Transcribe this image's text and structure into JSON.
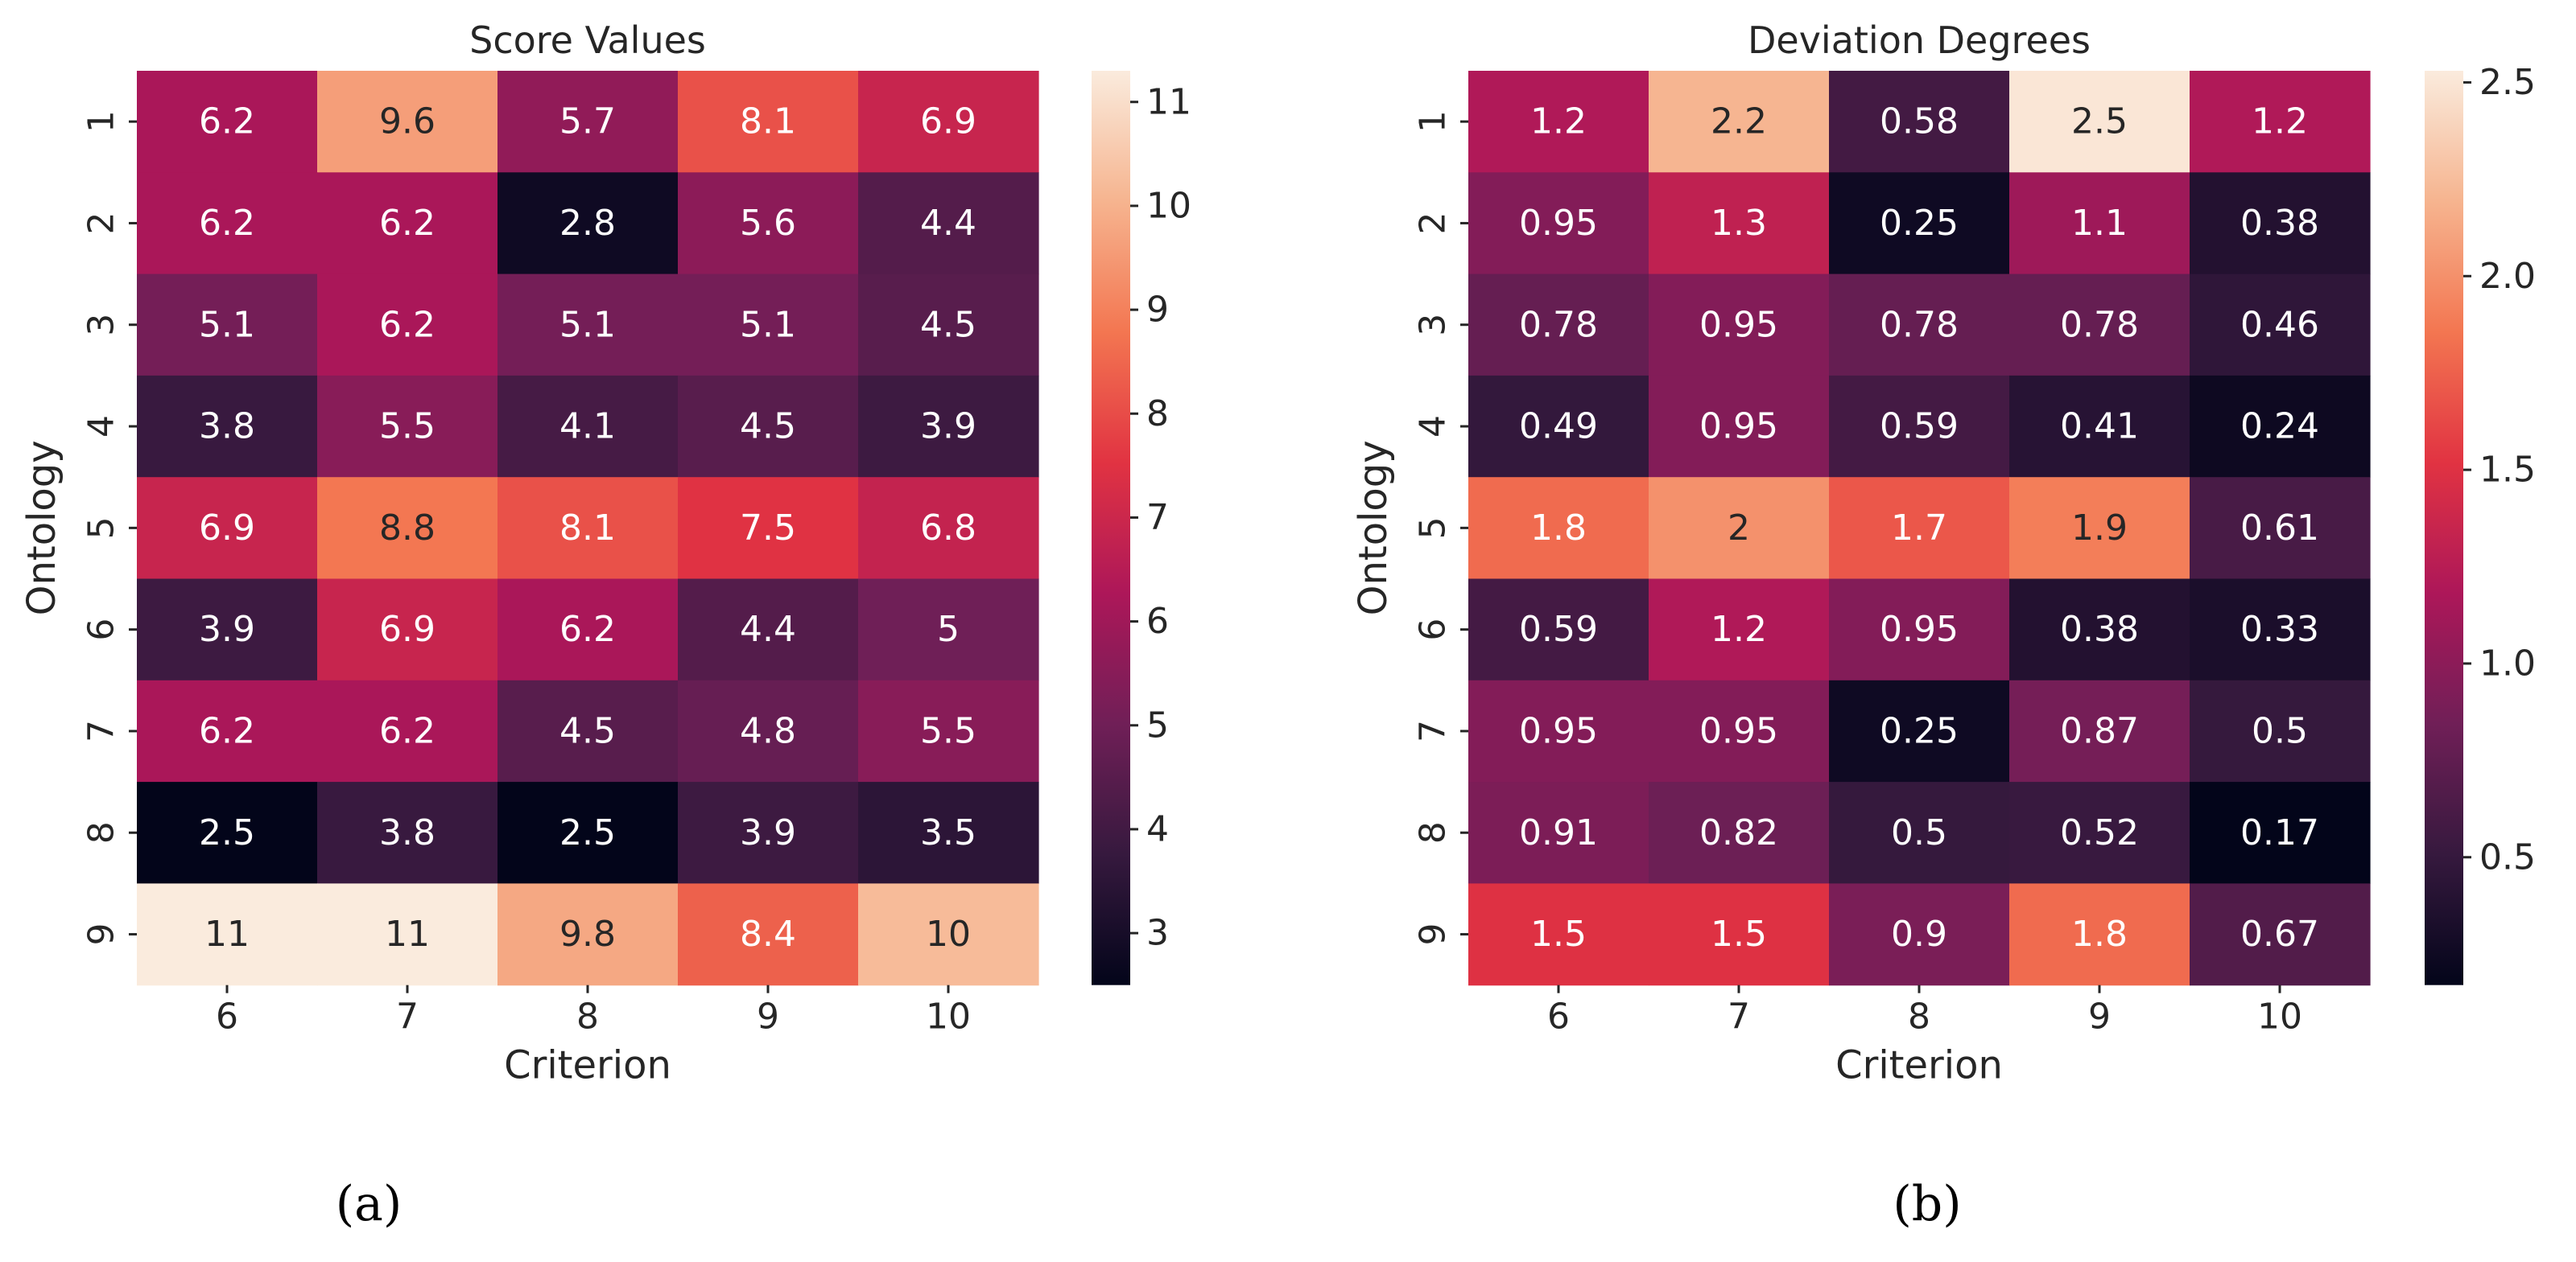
{
  "chart_data": [
    {
      "type": "heatmap",
      "title": "Score Values",
      "xlabel": "Criterion",
      "ylabel": "Ontology",
      "x_categories": [
        "6",
        "7",
        "8",
        "9",
        "10"
      ],
      "y_categories": [
        "1",
        "2",
        "3",
        "4",
        "5",
        "6",
        "7",
        "8",
        "9"
      ],
      "values": [
        [
          6.2,
          9.6,
          5.7,
          8.1,
          6.9
        ],
        [
          6.2,
          6.2,
          2.8,
          5.6,
          4.4
        ],
        [
          5.1,
          6.2,
          5.1,
          5.1,
          4.5
        ],
        [
          3.8,
          5.5,
          4.1,
          4.5,
          3.9
        ],
        [
          6.9,
          8.8,
          8.1,
          7.5,
          6.8
        ],
        [
          3.9,
          6.9,
          6.2,
          4.4,
          5.0
        ],
        [
          6.2,
          6.2,
          4.5,
          4.8,
          5.5
        ],
        [
          2.5,
          3.8,
          2.5,
          3.9,
          3.5
        ],
        [
          11.3,
          11.3,
          9.8,
          8.4,
          10.2
        ]
      ],
      "annotations": [
        [
          "6.2",
          "9.6",
          "5.7",
          "8.1",
          "6.9"
        ],
        [
          "6.2",
          "6.2",
          "2.8",
          "5.6",
          "4.4"
        ],
        [
          "5.1",
          "6.2",
          "5.1",
          "5.1",
          "4.5"
        ],
        [
          "3.8",
          "5.5",
          "4.1",
          "4.5",
          "3.9"
        ],
        [
          "6.9",
          "8.8",
          "8.1",
          "7.5",
          "6.8"
        ],
        [
          "3.9",
          "6.9",
          "6.2",
          "4.4",
          "5"
        ],
        [
          "6.2",
          "6.2",
          "4.5",
          "4.8",
          "5.5"
        ],
        [
          "2.5",
          "3.8",
          "2.5",
          "3.9",
          "3.5"
        ],
        [
          "11",
          "11",
          "9.8",
          "8.4",
          "10"
        ]
      ],
      "colorbar": {
        "range": [
          2.5,
          11.3
        ],
        "ticks": [
          3,
          4,
          5,
          6,
          7,
          8,
          9,
          10,
          11
        ],
        "tick_labels": [
          "3",
          "4",
          "5",
          "6",
          "7",
          "8",
          "9",
          "10",
          "11"
        ]
      },
      "colormap": "rocket",
      "annotation_colors": {
        "dark_cell": "#ffffff",
        "light_cell": "#262626"
      },
      "caption": "(a)"
    },
    {
      "type": "heatmap",
      "title": "Deviation Degrees",
      "xlabel": "Criterion",
      "ylabel": "Ontology",
      "x_categories": [
        "6",
        "7",
        "8",
        "9",
        "10"
      ],
      "y_categories": [
        "1",
        "2",
        "3",
        "4",
        "5",
        "6",
        "7",
        "8",
        "9"
      ],
      "values": [
        [
          1.2,
          2.2,
          0.58,
          2.5,
          1.2
        ],
        [
          0.95,
          1.3,
          0.25,
          1.1,
          0.38
        ],
        [
          0.78,
          0.95,
          0.78,
          0.78,
          0.46
        ],
        [
          0.49,
          0.95,
          0.59,
          0.41,
          0.24
        ],
        [
          1.8,
          2.0,
          1.7,
          1.9,
          0.61
        ],
        [
          0.59,
          1.2,
          0.95,
          0.38,
          0.33
        ],
        [
          0.95,
          0.95,
          0.25,
          0.87,
          0.5
        ],
        [
          0.91,
          0.82,
          0.5,
          0.52,
          0.17
        ],
        [
          1.5,
          1.5,
          0.9,
          1.8,
          0.67
        ]
      ],
      "annotations": [
        [
          "1.2",
          "2.2",
          "0.58",
          "2.5",
          "1.2"
        ],
        [
          "0.95",
          "1.3",
          "0.25",
          "1.1",
          "0.38"
        ],
        [
          "0.78",
          "0.95",
          "0.78",
          "0.78",
          "0.46"
        ],
        [
          "0.49",
          "0.95",
          "0.59",
          "0.41",
          "0.24"
        ],
        [
          "1.8",
          "2",
          "1.7",
          "1.9",
          "0.61"
        ],
        [
          "0.59",
          "1.2",
          "0.95",
          "0.38",
          "0.33"
        ],
        [
          "0.95",
          "0.95",
          "0.25",
          "0.87",
          "0.5"
        ],
        [
          "0.91",
          "0.82",
          "0.5",
          "0.52",
          "0.17"
        ],
        [
          "1.5",
          "1.5",
          "0.9",
          "1.8",
          "0.67"
        ]
      ],
      "colorbar": {
        "range": [
          0.17,
          2.53
        ],
        "ticks": [
          0.5,
          1.0,
          1.5,
          2.0,
          2.5
        ],
        "tick_labels": [
          "0.5",
          "1.0",
          "1.5",
          "2.0",
          "2.5"
        ]
      },
      "colormap": "rocket",
      "annotation_colors": {
        "dark_cell": "#ffffff",
        "light_cell": "#262626"
      },
      "caption": "(b)"
    }
  ],
  "colormap_stops": [
    "#03051a",
    "#36193e",
    "#701f57",
    "#ad1759",
    "#e13342",
    "#f37651",
    "#f6b48f",
    "#faebdd"
  ]
}
